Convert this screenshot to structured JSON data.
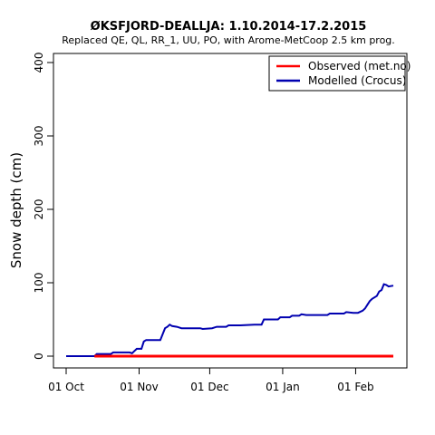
{
  "chart_data": {
    "type": "line",
    "title": "ØKSFJORD-DEALLJA: 1.10.2014-17.2.2015",
    "subtitle": "Replaced QE, QL, RR_1, UU, PO,  with Arome-MetCoop 2.5 km prog.",
    "xlabel": "",
    "ylabel": "Snow depth (cm)",
    "xlim": [
      "2014-10-01",
      "2015-02-17"
    ],
    "ylim": [
      0,
      410
    ],
    "x_ticks": [
      {
        "date": "2014-10-01",
        "label": "01 Oct"
      },
      {
        "date": "2014-11-01",
        "label": "01 Nov"
      },
      {
        "date": "2014-12-01",
        "label": "01 Dec"
      },
      {
        "date": "2015-01-01",
        "label": "01 Jan"
      },
      {
        "date": "2015-02-01",
        "label": "01 Feb"
      }
    ],
    "y_ticks": [
      0,
      100,
      200,
      300,
      400
    ],
    "grid": false,
    "legend_position": "top-right",
    "series": [
      {
        "name": "Observed (met.no)",
        "color": "#ff0000",
        "points": [
          [
            "2014-10-13",
            0
          ],
          [
            "2015-02-17",
            0
          ]
        ]
      },
      {
        "name": "Modelled (Crocus)",
        "color": "#0000b0",
        "points": [
          [
            "2014-10-01",
            0
          ],
          [
            "2014-10-13",
            0
          ],
          [
            "2014-10-14",
            3
          ],
          [
            "2014-10-20",
            3
          ],
          [
            "2014-10-21",
            5
          ],
          [
            "2014-10-28",
            5
          ],
          [
            "2014-10-29",
            4
          ],
          [
            "2014-10-30",
            7
          ],
          [
            "2014-10-31",
            10
          ],
          [
            "2014-11-02",
            10
          ],
          [
            "2014-11-03",
            20
          ],
          [
            "2014-11-04",
            22
          ],
          [
            "2014-11-10",
            22
          ],
          [
            "2014-11-11",
            30
          ],
          [
            "2014-11-12",
            38
          ],
          [
            "2014-11-13",
            40
          ],
          [
            "2014-11-14",
            43
          ],
          [
            "2014-11-15",
            41
          ],
          [
            "2014-11-17",
            40
          ],
          [
            "2014-11-19",
            38
          ],
          [
            "2014-11-25",
            38
          ],
          [
            "2014-11-27",
            38
          ],
          [
            "2014-11-28",
            37
          ],
          [
            "2014-12-02",
            38
          ],
          [
            "2014-12-04",
            40
          ],
          [
            "2014-12-08",
            40
          ],
          [
            "2014-12-09",
            42
          ],
          [
            "2014-12-14",
            42
          ],
          [
            "2014-12-20",
            43
          ],
          [
            "2014-12-23",
            43
          ],
          [
            "2014-12-24",
            50
          ],
          [
            "2014-12-30",
            50
          ],
          [
            "2014-12-31",
            53
          ],
          [
            "2015-01-04",
            53
          ],
          [
            "2015-01-05",
            55
          ],
          [
            "2015-01-08",
            55
          ],
          [
            "2015-01-09",
            57
          ],
          [
            "2015-01-11",
            56
          ],
          [
            "2015-01-20",
            56
          ],
          [
            "2015-01-21",
            58
          ],
          [
            "2015-01-27",
            58
          ],
          [
            "2015-01-28",
            60
          ],
          [
            "2015-01-31",
            59
          ],
          [
            "2015-02-02",
            59
          ],
          [
            "2015-02-04",
            62
          ],
          [
            "2015-02-05",
            65
          ],
          [
            "2015-02-06",
            70
          ],
          [
            "2015-02-07",
            75
          ],
          [
            "2015-02-08",
            78
          ],
          [
            "2015-02-10",
            82
          ],
          [
            "2015-02-11",
            88
          ],
          [
            "2015-02-12",
            90
          ],
          [
            "2015-02-13",
            98
          ],
          [
            "2015-02-14",
            97
          ],
          [
            "2015-02-15",
            95
          ],
          [
            "2015-02-17",
            96
          ]
        ]
      }
    ]
  }
}
